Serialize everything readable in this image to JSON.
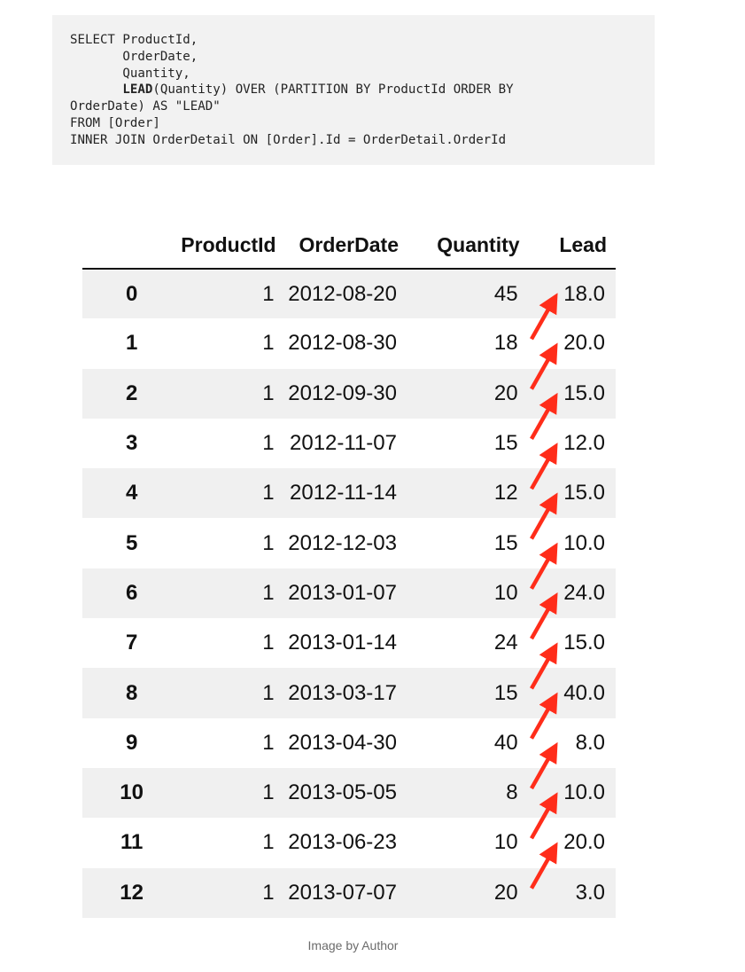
{
  "code": {
    "line1": "SELECT ProductId,",
    "line2": "       OrderDate,",
    "line3": "       Quantity,",
    "line4_keyword": "LEAD",
    "line4_rest": "(Quantity) OVER (PARTITION BY ProductId ORDER BY",
    "line5": "OrderDate) AS \"LEAD\"",
    "line6": "FROM [Order]",
    "line7": "INNER JOIN OrderDetail ON [Order].Id = OrderDetail.OrderId"
  },
  "table": {
    "headers": [
      "",
      "ProductId",
      "OrderDate",
      "Quantity",
      "Lead"
    ],
    "rows": [
      {
        "idx": "0",
        "pid": "1",
        "date": "2012-08-20",
        "qty": "45",
        "lead": "18.0"
      },
      {
        "idx": "1",
        "pid": "1",
        "date": "2012-08-30",
        "qty": "18",
        "lead": "20.0"
      },
      {
        "idx": "2",
        "pid": "1",
        "date": "2012-09-30",
        "qty": "20",
        "lead": "15.0"
      },
      {
        "idx": "3",
        "pid": "1",
        "date": "2012-11-07",
        "qty": "15",
        "lead": "12.0"
      },
      {
        "idx": "4",
        "pid": "1",
        "date": "2012-11-14",
        "qty": "12",
        "lead": "15.0"
      },
      {
        "idx": "5",
        "pid": "1",
        "date": "2012-12-03",
        "qty": "15",
        "lead": "10.0"
      },
      {
        "idx": "6",
        "pid": "1",
        "date": "2013-01-07",
        "qty": "10",
        "lead": "24.0"
      },
      {
        "idx": "7",
        "pid": "1",
        "date": "2013-01-14",
        "qty": "24",
        "lead": "15.0"
      },
      {
        "idx": "8",
        "pid": "1",
        "date": "2013-03-17",
        "qty": "15",
        "lead": "40.0"
      },
      {
        "idx": "9",
        "pid": "1",
        "date": "2013-04-30",
        "qty": "40",
        "lead": "8.0"
      },
      {
        "idx": "10",
        "pid": "1",
        "date": "2013-05-05",
        "qty": "8",
        "lead": "10.0"
      },
      {
        "idx": "11",
        "pid": "1",
        "date": "2013-06-23",
        "qty": "10",
        "lead": "20.0"
      },
      {
        "idx": "12",
        "pid": "1",
        "date": "2013-07-07",
        "qty": "20",
        "lead": "3.0"
      }
    ]
  },
  "arrow_color": "#ff2d1a",
  "caption": "Image by Author"
}
